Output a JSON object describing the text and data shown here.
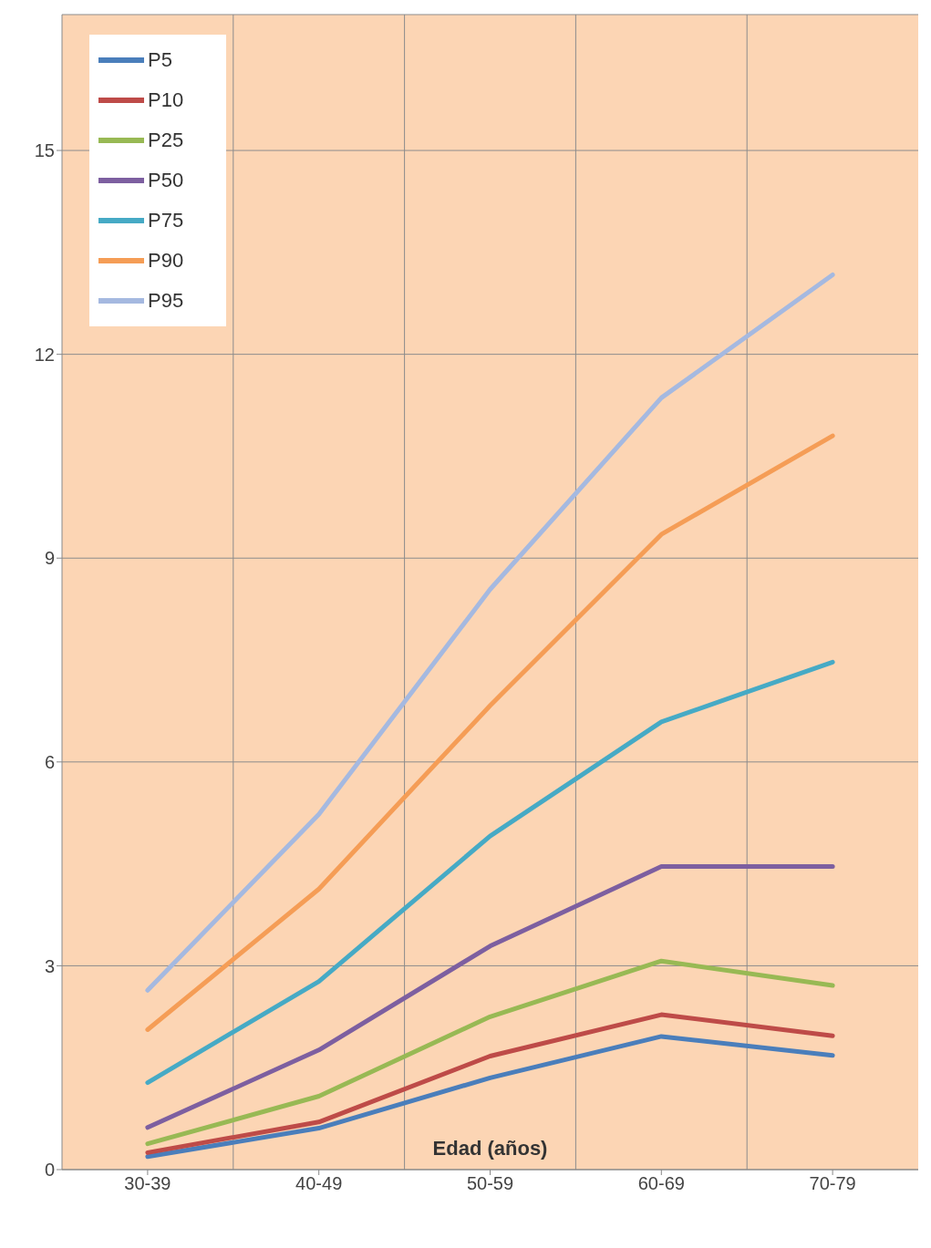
{
  "chart_data": {
    "type": "line",
    "xlabel": "Edad (años)",
    "categories": [
      "30-39",
      "40-49",
      "50-59",
      "60-69",
      "70-79"
    ],
    "series": [
      {
        "name": "P5",
        "color": "#4a7ebb",
        "values": [
          0.19,
          0.61,
          1.35,
          1.96,
          1.68
        ]
      },
      {
        "name": "P10",
        "color": "#be4b48",
        "values": [
          0.25,
          0.7,
          1.67,
          2.28,
          1.97
        ]
      },
      {
        "name": "P25",
        "color": "#98b954",
        "values": [
          0.38,
          1.08,
          2.25,
          3.07,
          2.71
        ]
      },
      {
        "name": "P50",
        "color": "#7d5fa0",
        "values": [
          0.62,
          1.76,
          3.29,
          4.46,
          4.46
        ]
      },
      {
        "name": "P75",
        "color": "#46aac5",
        "values": [
          1.28,
          2.77,
          4.91,
          6.59,
          7.47
        ]
      },
      {
        "name": "P90",
        "color": "#f59d56",
        "values": [
          2.06,
          4.13,
          6.83,
          9.35,
          10.8
        ]
      },
      {
        "name": "P95",
        "color": "#a5b9e0",
        "values": [
          2.64,
          5.23,
          8.54,
          11.36,
          13.17
        ]
      }
    ],
    "ylim": [
      0,
      17
    ],
    "yticks": [
      0,
      3,
      6,
      9,
      12,
      15
    ],
    "grid": true,
    "legend": "top left",
    "marker": "none",
    "line_style": "solid"
  }
}
